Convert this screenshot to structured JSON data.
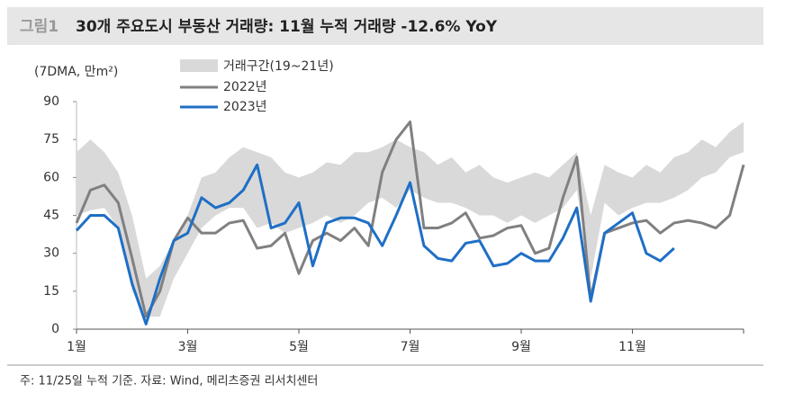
{
  "chart_data": {
    "type": "line",
    "figure_label": "그림1",
    "title": "30개 주요도시 부동산 거래량: 11월 누적 거래량 -12.6% YoY",
    "y_label": "(7DMA, 만m²)",
    "note": "주: 11/25일 누적 기준. 자료: Wind, 메리츠증권 리서치센터",
    "categories": [
      "1월",
      null,
      null,
      null,
      null,
      null,
      null,
      null,
      "3월",
      null,
      null,
      null,
      null,
      null,
      null,
      null,
      "5월",
      null,
      null,
      null,
      null,
      null,
      null,
      null,
      "7월",
      null,
      null,
      null,
      null,
      null,
      null,
      null,
      "9월",
      null,
      null,
      null,
      null,
      null,
      null,
      null,
      "11월",
      null,
      null,
      null,
      null,
      null,
      null,
      null,
      null
    ],
    "ylim": [
      0,
      90
    ],
    "yticks": [
      0,
      15,
      30,
      45,
      60,
      75,
      90
    ],
    "band": {
      "name": "거래구간(19~21년)",
      "color": "#d9d9d9",
      "low": [
        45,
        47,
        48,
        40,
        15,
        5,
        5,
        20,
        30,
        40,
        45,
        48,
        48,
        40,
        42,
        38,
        40,
        42,
        45,
        42,
        45,
        50,
        52,
        48,
        55,
        52,
        50,
        50,
        48,
        45,
        45,
        42,
        45,
        42,
        45,
        48,
        55,
        20,
        50,
        45,
        48,
        50,
        50,
        52,
        55,
        60,
        62,
        68,
        70
      ],
      "high": [
        70,
        75,
        70,
        62,
        45,
        20,
        25,
        35,
        45,
        60,
        62,
        68,
        72,
        70,
        68,
        62,
        60,
        62,
        66,
        65,
        70,
        70,
        72,
        75,
        72,
        70,
        65,
        68,
        62,
        65,
        60,
        58,
        60,
        62,
        60,
        65,
        70,
        45,
        65,
        62,
        60,
        65,
        62,
        68,
        70,
        75,
        72,
        78,
        82
      ]
    },
    "series": [
      {
        "name": "2022년",
        "color": "#808080",
        "values": [
          42,
          55,
          57,
          50,
          28,
          5,
          15,
          35,
          44,
          38,
          38,
          42,
          43,
          32,
          33,
          38,
          22,
          35,
          38,
          35,
          40,
          33,
          62,
          75,
          82,
          40,
          40,
          42,
          46,
          36,
          37,
          40,
          41,
          30,
          32,
          52,
          68,
          12,
          38,
          40,
          42,
          43,
          38,
          42,
          43,
          42,
          40,
          45,
          65
        ]
      },
      {
        "name": "2023년",
        "color": "#1f6fc5",
        "values": [
          39,
          45,
          45,
          40,
          18,
          2,
          20,
          35,
          38,
          52,
          48,
          50,
          55,
          65,
          40,
          42,
          50,
          25,
          42,
          44,
          44,
          42,
          33,
          45,
          58,
          33,
          28,
          27,
          34,
          35,
          25,
          26,
          30,
          27,
          27,
          36,
          48,
          11,
          38,
          42,
          46,
          30,
          27,
          32,
          null,
          null,
          null,
          null,
          null
        ]
      }
    ]
  }
}
